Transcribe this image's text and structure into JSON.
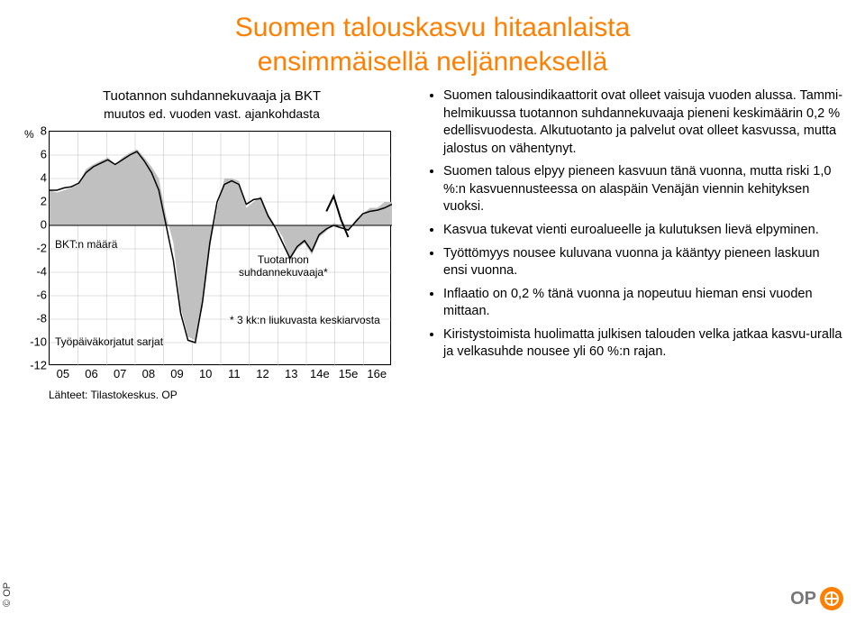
{
  "title_line1": "Suomen talouskasvu hitaanlaista",
  "title_line2": "ensimmäisellä neljänneksellä",
  "chart": {
    "type": "line+area",
    "title_main": "Tuotannon suhdannekuvaaja ja BKT",
    "title_sub": "muutos ed. vuoden vast. ajankohdasta",
    "y_unit_label": "%",
    "ylim": [
      -12,
      8
    ],
    "ytick_step": 2,
    "yticks": [
      8,
      6,
      4,
      2,
      0,
      -2,
      -4,
      -6,
      -8,
      -10,
      -12
    ],
    "x_labels": [
      "05",
      "06",
      "07",
      "08",
      "09",
      "10",
      "11",
      "12",
      "13",
      "14e",
      "15e",
      "16e"
    ],
    "ytick_fontsize": 13,
    "xtick_fontsize": 13,
    "background_color": "#ffffff",
    "grid_color": "#bfbfbf",
    "area_color": "#c0c0c0",
    "line_color": "#000000",
    "line_width": 1.5,
    "area_data": [
      3.0,
      2.8,
      3.0,
      3.2,
      3.5,
      4.8,
      5.2,
      5.5,
      5.8,
      5.2,
      5.8,
      6.2,
      6.5,
      5.8,
      5.0,
      4.0,
      0.8,
      -1.5,
      -7.0,
      -9.5,
      -9.8,
      -7.0,
      -2.0,
      1.5,
      4.0,
      4.0,
      3.8,
      1.5,
      2.0,
      2.5,
      1.0,
      0.0,
      -1.0,
      -3.0,
      -2.0,
      -1.5,
      -2.5,
      -1.0,
      -0.5,
      0.2,
      0.0,
      -0.5,
      0.5,
      1.0,
      1.5,
      1.5,
      2.0,
      2.0
    ],
    "line_data": [
      3.0,
      3.0,
      3.2,
      3.3,
      3.6,
      4.5,
      5.0,
      5.3,
      5.6,
      5.2,
      5.6,
      6.0,
      6.3,
      5.5,
      4.5,
      3.0,
      0.0,
      -3.0,
      -7.5,
      -9.8,
      -10.0,
      -6.5,
      -1.5,
      2.0,
      3.5,
      3.8,
      3.5,
      1.8,
      2.2,
      2.3,
      0.8,
      -0.2,
      -1.5,
      -2.8,
      -1.8,
      -1.3,
      -2.2,
      -0.8,
      -0.3,
      0.0,
      -0.2,
      -0.4,
      0.3,
      1.0,
      1.2,
      1.3,
      1.5,
      1.8
    ],
    "tuotannon_line": [
      null,
      null,
      null,
      null,
      null,
      null,
      null,
      null,
      null,
      null,
      null,
      null,
      null,
      null,
      null,
      null,
      null,
      null,
      null,
      null,
      null,
      null,
      null,
      null,
      null,
      null,
      null,
      null,
      null,
      null,
      null,
      null,
      null,
      null,
      null,
      null,
      null,
      null,
      1.2,
      2.5,
      0.5,
      -1.0,
      null,
      null,
      null,
      null,
      null,
      null
    ],
    "annotations": {
      "bkt_maara": "BKT:n määrä",
      "tuotannon": "Tuotannon\nsuhdannekuvaaja*",
      "footnote_star": "* 3 kk:n liukuvasta keskiarvosta",
      "tyopaiva": "Työpäiväkorjatut sarjat"
    },
    "source": "Lähteet: Tilastokeskus. OP"
  },
  "bullets": [
    "Suomen talousindikaattorit ovat olleet vaisuja vuoden alussa. Tammi-helmikuussa tuotannon suhdannekuvaaja pieneni keskimäärin 0,2 % edellisvuodesta. Alkutuotanto ja palvelut ovat olleet kasvussa, mutta jalostus on vähentynyt.",
    "Suomen talous elpyy pieneen kasvuun tänä vuonna, mutta riski 1,0 %:n kasvuennusteessa on alaspäin Venäjän viennin kehityksen vuoksi.",
    "Kasvua tukevat vienti euroalueelle ja kulutuksen lievä elpyminen.",
    "Työttömyys nousee kuluvana vuonna ja kääntyy pieneen laskuun ensi vuonna.",
    "Inflaatio on 0,2 % tänä vuonna ja nopeutuu hieman ensi vuoden mittaan.",
    "Kiristystoimista huolimatta julkisen talouden velka jatkaa kasvu-uralla ja velkasuhde nousee yli 60 %:n rajan."
  ],
  "footer_copy": "© OP",
  "logo_text": "OP",
  "logo_symbol": "⊕"
}
